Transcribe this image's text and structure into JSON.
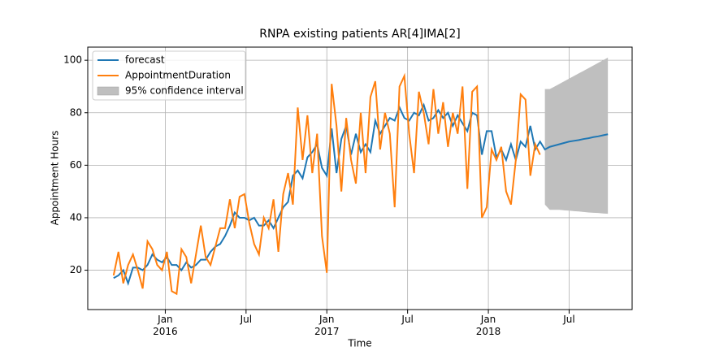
{
  "chart_data": {
    "type": "line",
    "title": "RNPA existing patients AR[4]IMA[2]",
    "xlabel": "Time",
    "ylabel": "Appointment Hours",
    "x": [
      2015.68,
      2015.71,
      2015.74,
      2015.77,
      2015.8,
      2015.83,
      2015.86,
      2015.89,
      2015.92,
      2015.95,
      2015.98,
      2016.01,
      2016.04,
      2016.07,
      2016.1,
      2016.13,
      2016.16,
      2016.19,
      2016.22,
      2016.25,
      2016.28,
      2016.31,
      2016.34,
      2016.37,
      2016.4,
      2016.43,
      2016.46,
      2016.49,
      2016.52,
      2016.55,
      2016.58,
      2016.61,
      2016.64,
      2016.67,
      2016.7,
      2016.73,
      2016.76,
      2016.79,
      2016.82,
      2016.85,
      2016.88,
      2016.91,
      2016.94,
      2016.97,
      2017.0,
      2017.03,
      2017.06,
      2017.09,
      2017.12,
      2017.15,
      2017.18,
      2017.21,
      2017.24,
      2017.27,
      2017.3,
      2017.33,
      2017.36,
      2017.39,
      2017.42,
      2017.45,
      2017.48,
      2017.51,
      2017.54,
      2017.57,
      2017.6,
      2017.63,
      2017.66,
      2017.69,
      2017.72,
      2017.75,
      2017.78,
      2017.81,
      2017.84,
      2017.87,
      2017.9,
      2017.93,
      2017.96,
      2017.99,
      2018.02,
      2018.05,
      2018.08,
      2018.11,
      2018.14,
      2018.17,
      2018.2,
      2018.23,
      2018.26,
      2018.29,
      2018.32,
      2018.35,
      2018.38,
      2018.41,
      2018.44,
      2018.47,
      2018.5,
      2018.53,
      2018.56,
      2018.59,
      2018.62,
      2018.65,
      2018.68,
      2018.71,
      2018.74
    ],
    "series": [
      {
        "name": "forecast",
        "color": "#1f77b4",
        "values": [
          17,
          18,
          20,
          15,
          21,
          21,
          20,
          22,
          26,
          24,
          23,
          25,
          22,
          22,
          20,
          23,
          21,
          22,
          24,
          24,
          27,
          29,
          30,
          33,
          37,
          42,
          40,
          40,
          39,
          40,
          37,
          37,
          39,
          36,
          40,
          44,
          46,
          56,
          58,
          55,
          63,
          65,
          68,
          59,
          56,
          74,
          57,
          70,
          75,
          64,
          72,
          65,
          68,
          65,
          77,
          72,
          75,
          78,
          77,
          82,
          78,
          77,
          80,
          79,
          83,
          77,
          78,
          81,
          78,
          80,
          75,
          79,
          76,
          73,
          80,
          79,
          64,
          73,
          73,
          63,
          66,
          62,
          68,
          62,
          69,
          67,
          75,
          66,
          69,
          66,
          67,
          67.5,
          68,
          68.5,
          69,
          69.3,
          69.6,
          70,
          70.3,
          70.7,
          71,
          71.4,
          71.8
        ]
      },
      {
        "name": "AppointmentDuration",
        "color": "#ff7f0e",
        "values": [
          18,
          27,
          15,
          22,
          26,
          20,
          13,
          31,
          28,
          22,
          20,
          27,
          12,
          11,
          28,
          25,
          15,
          26,
          37,
          25,
          22,
          29,
          36,
          36,
          47,
          36,
          48,
          49,
          38,
          30,
          26,
          40,
          36,
          47,
          27,
          49,
          57,
          45,
          82,
          62,
          79,
          57,
          72,
          33,
          19,
          91,
          75,
          50,
          78,
          62,
          53,
          80,
          57,
          86,
          92,
          66,
          80,
          72,
          44,
          90,
          94,
          72,
          57,
          88,
          80,
          68,
          89,
          72,
          84,
          67,
          80,
          72,
          90,
          51,
          88,
          90,
          40,
          44,
          66,
          62,
          67,
          50,
          45,
          62,
          87,
          85,
          56,
          68,
          64,
          null,
          null,
          null,
          null,
          null,
          null,
          null,
          null,
          null,
          null,
          null,
          null,
          null,
          null
        ]
      }
    ],
    "confidence_interval": {
      "name": "95% confidence interval",
      "color": "#bfbfbf",
      "lower": [
        null,
        null,
        null,
        null,
        null,
        null,
        null,
        null,
        null,
        null,
        null,
        null,
        null,
        null,
        null,
        null,
        null,
        null,
        null,
        null,
        null,
        null,
        null,
        null,
        null,
        null,
        null,
        null,
        null,
        null,
        null,
        null,
        null,
        null,
        null,
        null,
        null,
        null,
        null,
        null,
        null,
        null,
        null,
        null,
        null,
        null,
        null,
        null,
        null,
        null,
        null,
        null,
        null,
        null,
        null,
        null,
        null,
        null,
        null,
        null,
        null,
        null,
        null,
        null,
        null,
        null,
        null,
        null,
        null,
        null,
        null,
        null,
        null,
        null,
        null,
        null,
        null,
        null,
        null,
        null,
        null,
        null,
        null,
        null,
        null,
        null,
        null,
        null,
        null,
        45,
        43,
        43,
        43,
        42.8,
        42.7,
        42.5,
        42.4,
        42.2,
        42,
        41.9,
        41.8,
        41.6,
        41.5
      ],
      "upper": [
        null,
        null,
        null,
        null,
        null,
        null,
        null,
        null,
        null,
        null,
        null,
        null,
        null,
        null,
        null,
        null,
        null,
        null,
        null,
        null,
        null,
        null,
        null,
        null,
        null,
        null,
        null,
        null,
        null,
        null,
        null,
        null,
        null,
        null,
        null,
        null,
        null,
        null,
        null,
        null,
        null,
        null,
        null,
        null,
        null,
        null,
        null,
        null,
        null,
        null,
        null,
        null,
        null,
        null,
        null,
        null,
        null,
        null,
        null,
        null,
        null,
        null,
        null,
        null,
        null,
        null,
        null,
        null,
        null,
        null,
        null,
        null,
        null,
        null,
        null,
        null,
        null,
        null,
        null,
        null,
        null,
        null,
        null,
        null,
        null,
        null,
        null,
        null,
        null,
        89,
        89,
        90,
        91,
        92,
        93,
        94,
        95,
        96,
        97,
        98,
        99,
        100,
        101
      ]
    },
    "xlim": [
      2015.52,
      2018.89
    ],
    "ylim": [
      5,
      105
    ],
    "xticks": [
      {
        "value": 2016,
        "label": "Jan\n2016"
      },
      {
        "value": 2016.5,
        "label": "Jul"
      },
      {
        "value": 2017,
        "label": "Jan\n2017"
      },
      {
        "value": 2017.5,
        "label": "Jul"
      },
      {
        "value": 2018,
        "label": "Jan\n2018"
      },
      {
        "value": 2018.5,
        "label": "Jul"
      }
    ],
    "yticks": [
      20,
      40,
      60,
      80,
      100
    ],
    "grid": true,
    "legend": "upper left"
  }
}
